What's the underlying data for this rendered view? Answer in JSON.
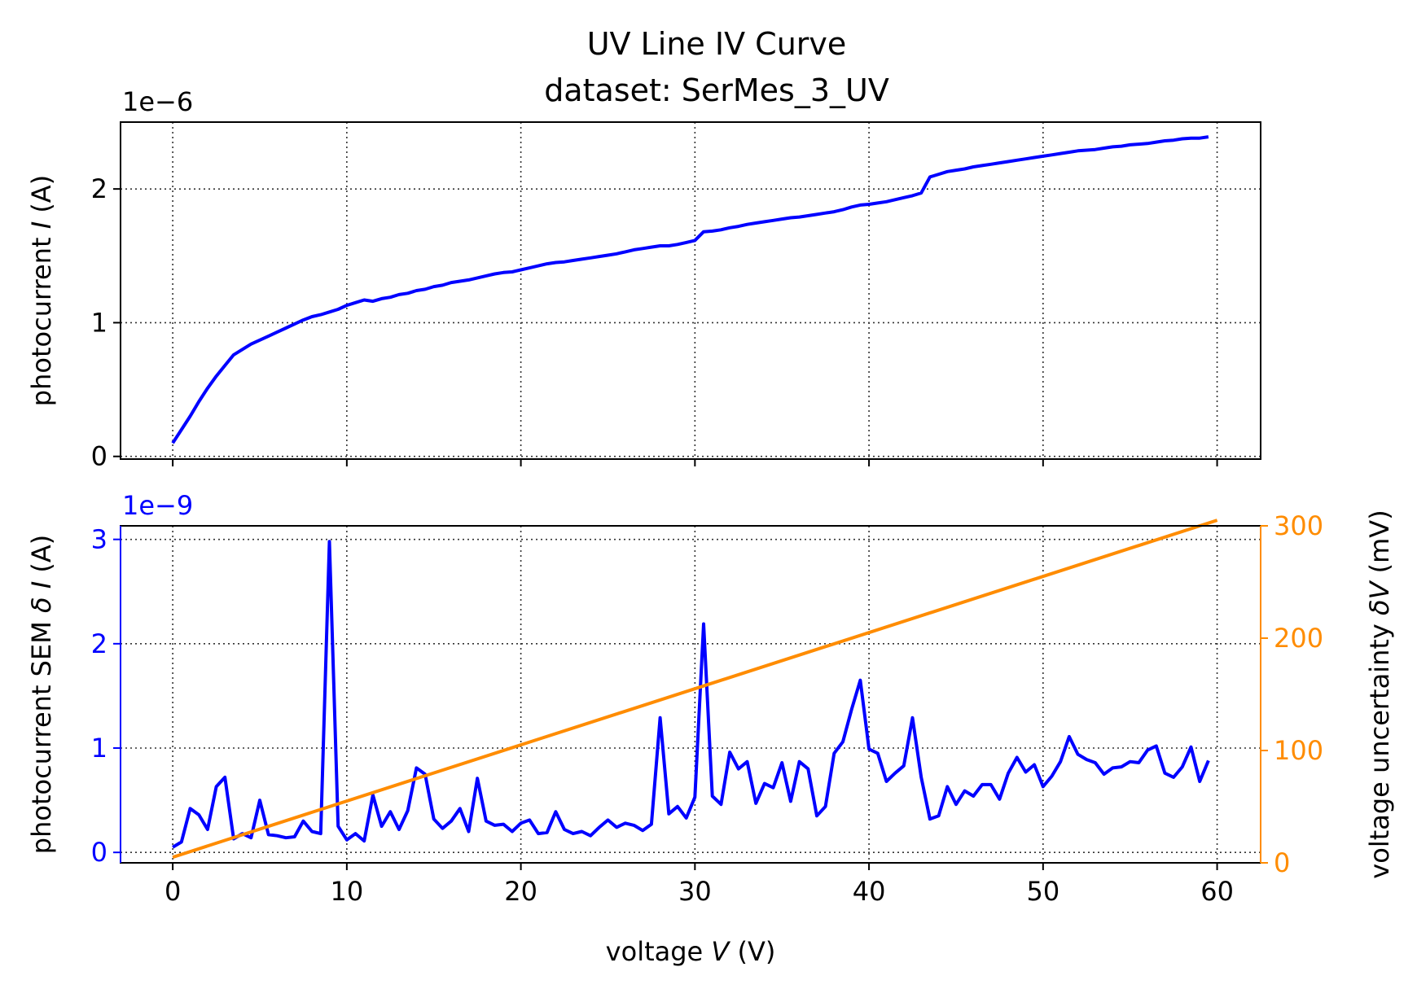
{
  "title": {
    "line1": "UV Line IV Curve",
    "line2": "dataset: SerMes_3_UV"
  },
  "colors": {
    "current": "#0000ff",
    "voltage_unc": "#ff8c00",
    "axes": "#000000",
    "grid": "#333333"
  },
  "chart_data": [
    {
      "type": "line",
      "name": "photocurrent",
      "ylabel_parts": [
        "photocurrent ",
        "I",
        " (A)"
      ],
      "offset_label": "1e−6",
      "scale": 1e-06,
      "xlim": [
        -3,
        62.5
      ],
      "ylim": [
        -0.02,
        2.5
      ],
      "xticks": [
        0,
        10,
        20,
        30,
        40,
        50,
        60
      ],
      "yticks": [
        0,
        1,
        2
      ],
      "grid": true,
      "series": [
        {
          "name": "photocurrent I",
          "x": [
            0,
            0.5,
            1,
            1.5,
            2,
            2.5,
            3,
            3.5,
            4,
            4.5,
            5,
            5.5,
            6,
            6.5,
            7,
            7.5,
            8,
            8.5,
            9,
            9.5,
            10,
            10.5,
            11,
            11.5,
            12,
            12.5,
            13,
            13.5,
            14,
            14.5,
            15,
            15.5,
            16,
            16.5,
            17,
            17.5,
            18,
            18.5,
            19,
            19.5,
            20,
            20.5,
            21,
            21.5,
            22,
            22.5,
            23,
            23.5,
            24,
            24.5,
            25,
            25.5,
            26,
            26.5,
            27,
            27.5,
            28,
            28.5,
            29,
            29.5,
            30,
            30.5,
            31,
            31.5,
            32,
            32.5,
            33,
            33.5,
            34,
            34.5,
            35,
            35.5,
            36,
            36.5,
            37,
            37.5,
            38,
            38.5,
            39,
            39.5,
            40,
            40.5,
            41,
            41.5,
            42,
            42.5,
            43,
            43.5,
            44,
            44.5,
            45,
            45.5,
            46,
            46.5,
            47,
            47.5,
            48,
            48.5,
            49,
            49.5,
            50,
            50.5,
            51,
            51.5,
            52,
            52.5,
            53,
            53.5,
            54,
            54.5,
            55,
            55.5,
            56,
            56.5,
            57,
            57.5,
            58,
            58.5,
            59,
            59.5
          ],
          "y": [
            0.1,
            0.2,
            0.3,
            0.41,
            0.51,
            0.6,
            0.68,
            0.76,
            0.8,
            0.84,
            0.87,
            0.9,
            0.93,
            0.96,
            0.99,
            1.02,
            1.045,
            1.06,
            1.08,
            1.1,
            1.13,
            1.15,
            1.17,
            1.16,
            1.18,
            1.19,
            1.21,
            1.22,
            1.24,
            1.25,
            1.27,
            1.28,
            1.3,
            1.31,
            1.32,
            1.335,
            1.35,
            1.365,
            1.375,
            1.38,
            1.395,
            1.41,
            1.425,
            1.44,
            1.45,
            1.455,
            1.465,
            1.475,
            1.485,
            1.495,
            1.505,
            1.515,
            1.53,
            1.545,
            1.555,
            1.565,
            1.575,
            1.575,
            1.585,
            1.6,
            1.615,
            1.68,
            1.685,
            1.695,
            1.71,
            1.72,
            1.735,
            1.745,
            1.755,
            1.765,
            1.775,
            1.785,
            1.79,
            1.8,
            1.81,
            1.82,
            1.83,
            1.845,
            1.865,
            1.88,
            1.885,
            1.895,
            1.905,
            1.92,
            1.935,
            1.95,
            1.97,
            2.09,
            2.11,
            2.13,
            2.14,
            2.15,
            2.165,
            2.175,
            2.185,
            2.195,
            2.205,
            2.215,
            2.225,
            2.235,
            2.245,
            2.255,
            2.265,
            2.275,
            2.285,
            2.29,
            2.295,
            2.305,
            2.315,
            2.32,
            2.33,
            2.335,
            2.34,
            2.35,
            2.36,
            2.365,
            2.375,
            2.38,
            2.38,
            2.39
          ]
        }
      ]
    },
    {
      "type": "line",
      "name": "photocurrent SEM and voltage uncertainty",
      "ylabel_parts": [
        "photocurrent SEM ",
        "δ I",
        " (A)"
      ],
      "y2label_parts": [
        "voltage uncertainty ",
        "δV",
        " (mV)"
      ],
      "xlabel_parts": [
        "voltage ",
        "V",
        " (V)"
      ],
      "offset_label": "1e−9",
      "scale": 1e-09,
      "xlim": [
        -3,
        62.5
      ],
      "ylim": [
        -0.1,
        3.13
      ],
      "y2lim": [
        0,
        300
      ],
      "xticks": [
        0,
        10,
        20,
        30,
        40,
        50,
        60
      ],
      "yticks": [
        0,
        1,
        2,
        3
      ],
      "y2ticks": [
        0,
        100,
        200,
        300
      ],
      "grid": true,
      "series": [
        {
          "name": "photocurrent SEM δI",
          "axis": "left",
          "x": [
            0,
            0.5,
            1,
            1.5,
            2,
            2.5,
            3,
            3.5,
            4,
            4.5,
            5,
            5.5,
            6,
            6.5,
            7,
            7.5,
            8,
            8.5,
            9,
            9.5,
            10,
            10.5,
            11,
            11.5,
            12,
            12.5,
            13,
            13.5,
            14,
            14.5,
            15,
            15.5,
            16,
            16.5,
            17,
            17.5,
            18,
            18.5,
            19,
            19.5,
            20,
            20.5,
            21,
            21.5,
            22,
            22.5,
            23,
            23.5,
            24,
            24.5,
            25,
            25.5,
            26,
            26.5,
            27,
            27.5,
            28,
            28.5,
            29,
            29.5,
            30,
            30.5,
            31,
            31.5,
            32,
            32.5,
            33,
            33.5,
            34,
            34.5,
            35,
            35.5,
            36,
            36.5,
            37,
            37.5,
            38,
            38.5,
            39,
            39.5,
            40,
            40.5,
            41,
            41.5,
            42,
            42.5,
            43,
            43.5,
            44,
            44.5,
            45,
            45.5,
            46,
            46.5,
            47,
            47.5,
            48,
            48.5,
            49,
            49.5,
            50,
            50.5,
            51,
            51.5,
            52,
            52.5,
            53,
            53.5,
            54,
            54.5,
            55,
            55.5,
            56,
            56.5,
            57,
            57.5,
            58,
            58.5,
            59,
            59.5
          ],
          "y": [
            0.05,
            0.1,
            0.42,
            0.36,
            0.22,
            0.63,
            0.72,
            0.13,
            0.18,
            0.14,
            0.5,
            0.17,
            0.16,
            0.14,
            0.15,
            0.3,
            0.2,
            0.18,
            2.98,
            0.25,
            0.12,
            0.18,
            0.11,
            0.55,
            0.25,
            0.39,
            0.22,
            0.4,
            0.81,
            0.75,
            0.32,
            0.23,
            0.3,
            0.42,
            0.2,
            0.71,
            0.3,
            0.26,
            0.27,
            0.2,
            0.28,
            0.31,
            0.18,
            0.19,
            0.39,
            0.22,
            0.18,
            0.2,
            0.16,
            0.24,
            0.31,
            0.24,
            0.28,
            0.26,
            0.21,
            0.27,
            1.29,
            0.37,
            0.44,
            0.33,
            0.53,
            2.19,
            0.54,
            0.46,
            0.96,
            0.8,
            0.87,
            0.47,
            0.66,
            0.62,
            0.86,
            0.49,
            0.87,
            0.8,
            0.35,
            0.44,
            0.95,
            1.06,
            1.37,
            1.65,
            0.99,
            0.95,
            0.68,
            0.76,
            0.83,
            1.29,
            0.72,
            0.32,
            0.35,
            0.63,
            0.46,
            0.59,
            0.54,
            0.65,
            0.65,
            0.51,
            0.76,
            0.91,
            0.77,
            0.84,
            0.63,
            0.73,
            0.87,
            1.11,
            0.94,
            0.89,
            0.86,
            0.75,
            0.81,
            0.82,
            0.87,
            0.86,
            0.98,
            1.02,
            0.76,
            0.72,
            0.82,
            1.01,
            0.68,
            0.88
          ]
        },
        {
          "name": "voltage uncertainty δV",
          "axis": "right",
          "x": [
            0,
            60
          ],
          "y": [
            5,
            305
          ]
        }
      ]
    }
  ]
}
